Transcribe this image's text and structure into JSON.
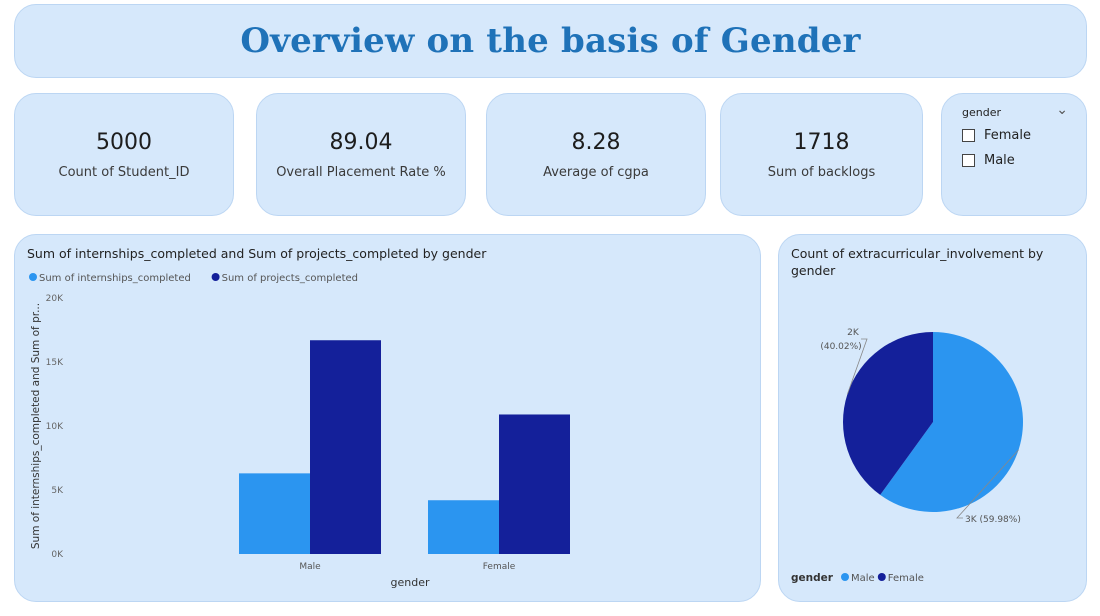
{
  "header": {
    "title": "Overview on the basis of Gender"
  },
  "kpis": [
    {
      "value": "5000",
      "label": "Count of Student_ID"
    },
    {
      "value": "89.04",
      "label": "Overall Placement Rate %"
    },
    {
      "value": "8.28",
      "label": "Average of cgpa"
    },
    {
      "value": "1718",
      "label": "Sum of backlogs"
    }
  ],
  "slicer": {
    "title": "gender",
    "options": [
      "Female",
      "Male"
    ]
  },
  "bar_chart": {
    "title": "Sum of internships_completed and Sum of projects_completed by gender"
  },
  "pie_chart": {
    "title_line1": "Count of extracurricular_involvement by",
    "title_line2": "gender"
  },
  "colors": {
    "light_blue": "#2b95f0",
    "dark_blue": "#14209a",
    "card_bg": "#d6e8fb",
    "title_blue": "#1f72b8"
  },
  "chart_data": [
    {
      "type": "bar",
      "title": "Sum of internships_completed and Sum of projects_completed by gender",
      "categories": [
        "Male",
        "Female"
      ],
      "series": [
        {
          "name": "Sum of internships_completed",
          "values": [
            6300,
            4200
          ],
          "color": "#2b95f0"
        },
        {
          "name": "Sum of projects_completed",
          "values": [
            16700,
            10900
          ],
          "color": "#14209a"
        }
      ],
      "xlabel": "gender",
      "ylabel": "Sum of internships_completed and Sum of pr...",
      "ylim": [
        0,
        20000
      ],
      "yticks": [
        "0K",
        "5K",
        "10K",
        "15K",
        "20K"
      ],
      "legend": "top-left"
    },
    {
      "type": "pie",
      "title": "Count of extracurricular_involvement by gender",
      "labels": [
        "Male",
        "Female"
      ],
      "values": [
        59.98,
        40.02
      ],
      "data_labels": [
        "3K (59.98%)",
        "2K (40.02%)"
      ],
      "colors": [
        "#2b95f0",
        "#14209a"
      ],
      "legend_title": "gender",
      "legend": "bottom-left"
    }
  ]
}
